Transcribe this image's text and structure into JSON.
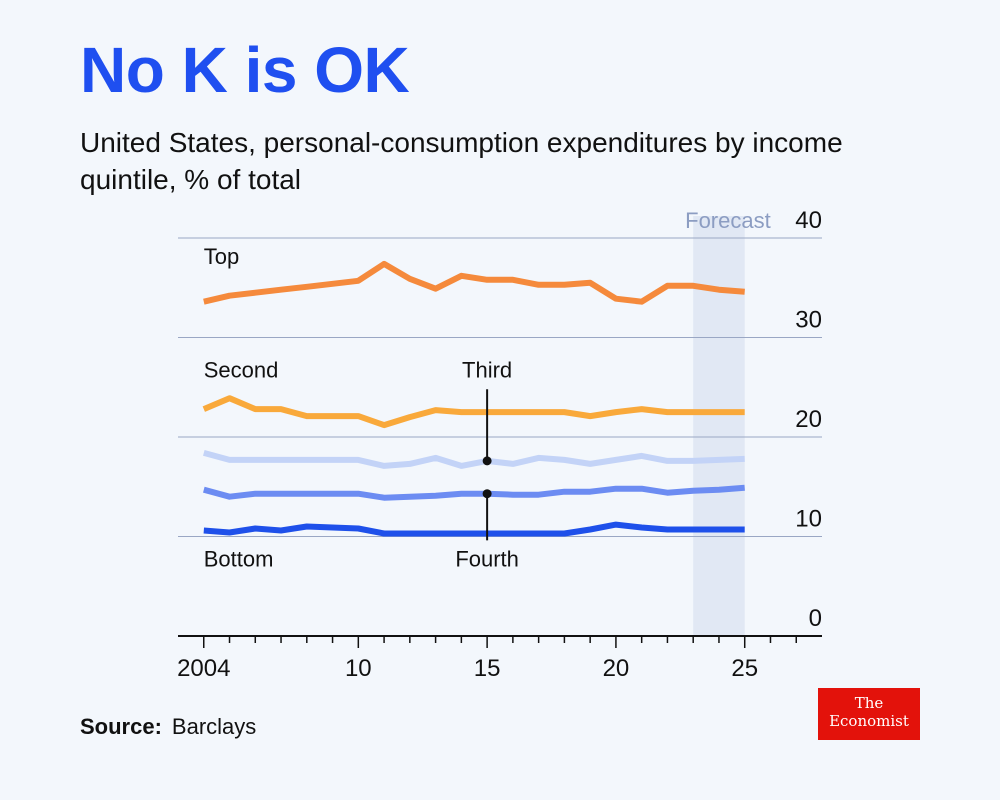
{
  "header": {
    "title": "No K is OK",
    "subtitle": "United States, personal-consumption expenditures by income quintile, % of total"
  },
  "source": {
    "label": "Source:",
    "value": "Barclays"
  },
  "logo": {
    "line1": "The",
    "line2": "Economist"
  },
  "colors": {
    "background": "#f3f7fc",
    "title": "#1f4ff0",
    "forecast_band": "#e1e8f4",
    "forecast_text": "#8c9dc2",
    "gridline": "#9aa7c4"
  },
  "chart_data": {
    "type": "line",
    "title": "No K is OK",
    "xlabel": "",
    "ylabel": "% of total",
    "xlim": [
      2003,
      2028
    ],
    "ylim": [
      0,
      40
    ],
    "x_ticks": [
      2004,
      2010,
      2015,
      2020,
      2025
    ],
    "x_tick_labels": [
      "2004",
      "10",
      "15",
      "20",
      "25"
    ],
    "y_ticks": [
      0,
      10,
      20,
      30,
      40
    ],
    "y_tick_labels": [
      "0",
      "10",
      "20",
      "30",
      "40"
    ],
    "forecast": {
      "label": "Forecast",
      "start": 2023,
      "end": 2025
    },
    "x": [
      2004,
      2005,
      2006,
      2007,
      2008,
      2009,
      2010,
      2011,
      2012,
      2013,
      2014,
      2015,
      2016,
      2017,
      2018,
      2019,
      2020,
      2021,
      2022,
      2023,
      2024,
      2025
    ],
    "series": [
      {
        "name": "Top",
        "color": "#f58a3c",
        "values": [
          33.6,
          34.2,
          34.5,
          34.8,
          35.1,
          35.4,
          35.7,
          37.4,
          35.9,
          34.9,
          36.2,
          35.8,
          35.8,
          35.3,
          35.3,
          35.5,
          33.9,
          33.6,
          35.2,
          35.2,
          34.8,
          34.6
        ]
      },
      {
        "name": "Second",
        "color": "#f9a93b",
        "values": [
          22.8,
          23.9,
          22.8,
          22.8,
          22.1,
          22.1,
          22.1,
          21.2,
          22.0,
          22.7,
          22.5,
          22.5,
          22.5,
          22.5,
          22.5,
          22.1,
          22.5,
          22.8,
          22.5,
          22.5,
          22.5,
          22.5
        ]
      },
      {
        "name": "Third",
        "color": "#c3d3f7",
        "values": [
          18.4,
          17.7,
          17.7,
          17.7,
          17.7,
          17.7,
          17.7,
          17.1,
          17.3,
          17.9,
          17.1,
          17.6,
          17.3,
          17.9,
          17.7,
          17.3,
          17.7,
          18.1,
          17.6,
          17.6,
          17.7,
          17.8
        ]
      },
      {
        "name": "Fourth",
        "color": "#6c8cf2",
        "values": [
          14.7,
          14.0,
          14.3,
          14.3,
          14.3,
          14.3,
          14.3,
          13.9,
          14.0,
          14.1,
          14.3,
          14.3,
          14.2,
          14.2,
          14.5,
          14.5,
          14.8,
          14.8,
          14.4,
          14.6,
          14.7,
          14.9
        ]
      },
      {
        "name": "Bottom",
        "color": "#1e50ea",
        "values": [
          10.6,
          10.4,
          10.8,
          10.6,
          11.0,
          10.9,
          10.8,
          10.3,
          10.3,
          10.3,
          10.3,
          10.3,
          10.3,
          10.3,
          10.3,
          10.7,
          11.2,
          10.9,
          10.7,
          10.7,
          10.7,
          10.7
        ]
      }
    ],
    "labels": {
      "Top": {
        "text": "Top",
        "at_x": 2004,
        "at_y": 37.4
      },
      "Second": {
        "text": "Second",
        "at_x": 2004,
        "at_y": 26.0
      },
      "Third": {
        "text": "Third",
        "at_x": 2015,
        "at_y": 26.0,
        "leader_to": 17.6
      },
      "Fourth": {
        "text": "Fourth",
        "at_x": 2015,
        "at_y": 7.0,
        "leader_to": 14.3
      },
      "Bottom": {
        "text": "Bottom",
        "at_x": 2004,
        "at_y": 7.0
      }
    }
  }
}
